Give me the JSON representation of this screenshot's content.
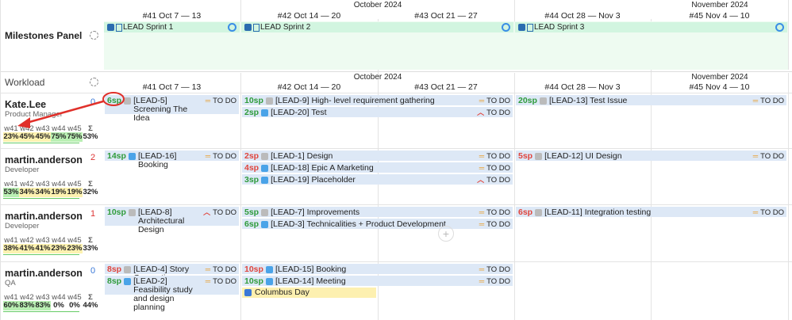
{
  "milestones": {
    "title": "Milestones Panel",
    "months": [
      "October 2024",
      "November 2024"
    ],
    "weeks": [
      "#41 Oct 7 — 13",
      "#42 Oct 14 — 20",
      "#43 Oct 21 — 27",
      "#44 Oct 28 — Nov 3",
      "#45 Nov 4 — 10"
    ],
    "sprints": [
      "LEAD Sprint 1",
      "LEAD Sprint 2",
      "LEAD Sprint 3"
    ]
  },
  "workload": {
    "title": "Workload",
    "months": [
      "October 2024",
      "November 2024"
    ],
    "weeks": [
      "#41 Oct 7 — 13",
      "#42 Oct 14 — 20",
      "#43 Oct 21 — 27",
      "#44 Oct 28 — Nov 3",
      "#45 Nov 4 — 10"
    ],
    "load_headers": [
      "w41",
      "w42",
      "w43",
      "w44",
      "w45",
      "Σ"
    ],
    "people": [
      {
        "name": "Kate.Lee",
        "role": "Product Manager",
        "count": "0",
        "loads": [
          "23%",
          "45%",
          "45%",
          "75%",
          "75%",
          "53%"
        ],
        "tasks": [
          {
            "points": "6sp",
            "key": "[LEAD-5]",
            "title": "Screening The Idea",
            "status": "TO DO"
          },
          {
            "points": "10sp",
            "key": "[LEAD-9]",
            "title": "High- level requirement gathering",
            "status": "TO DO"
          },
          {
            "points": "2sp",
            "key": "[LEAD-20]",
            "title": "Test",
            "status": "TO DO"
          },
          {
            "points": "20sp",
            "key": "[LEAD-13]",
            "title": "Test Issue",
            "status": "TO DO"
          }
        ]
      },
      {
        "name": "martin.anderson",
        "role": "Developer",
        "count": "2",
        "loads": [
          "53%",
          "34%",
          "34%",
          "19%",
          "19%",
          "32%"
        ],
        "tasks": [
          {
            "points": "14sp",
            "key": "[LEAD-16]",
            "title": "Booking",
            "status": "TO DO"
          },
          {
            "points": "2sp",
            "key": "[LEAD-1]",
            "title": "Design",
            "status": "TO DO"
          },
          {
            "points": "4sp",
            "key": "[LEAD-18]",
            "title": "Epic A Marketing",
            "status": "TO DO"
          },
          {
            "points": "3sp",
            "key": "[LEAD-19]",
            "title": "Placeholder",
            "status": "TO DO"
          },
          {
            "points": "5sp",
            "key": "[LEAD-12]",
            "title": "UI Design",
            "status": "TO DO"
          }
        ]
      },
      {
        "name": "martin.anderson",
        "role": "Developer",
        "count": "1",
        "loads": [
          "38%",
          "41%",
          "41%",
          "23%",
          "23%",
          "33%"
        ],
        "tasks": [
          {
            "points": "10sp",
            "key": "[LEAD-8]",
            "title": "Architectural Design",
            "status": "TO DO"
          },
          {
            "points": "5sp",
            "key": "[LEAD-7]",
            "title": "Improvements",
            "status": "TO DO"
          },
          {
            "points": "6sp",
            "key": "[LEAD-3]",
            "title": "Technicalities + Product Development",
            "status": "TO DO"
          },
          {
            "points": "6sp",
            "key": "[LEAD-11]",
            "title": "Integration testing",
            "status": "TO DO"
          }
        ]
      },
      {
        "name": "martin.anderson",
        "role": "QA",
        "count": "0",
        "loads": [
          "60%",
          "83%",
          "83%",
          "0%",
          "0%",
          "44%"
        ],
        "tasks": [
          {
            "points": "8sp",
            "key": "[LEAD-4]",
            "title": "Story Generating",
            "status": "TO DO"
          },
          {
            "points": "8sp",
            "key": "[LEAD-2]",
            "title": "Feasibility study and design planning",
            "status": "TO DO"
          },
          {
            "points": "10sp",
            "key": "[LEAD-15]",
            "title": "Booking",
            "status": "TO DO"
          },
          {
            "points": "10sp",
            "key": "[LEAD-14]",
            "title": "Meeting",
            "status": "TO DO"
          }
        ],
        "holiday": "Columbus Day"
      }
    ]
  }
}
